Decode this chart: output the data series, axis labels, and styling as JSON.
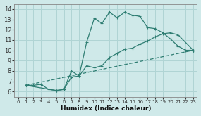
{
  "xlabel": "Humidex (Indice chaleur)",
  "xlim": [
    -0.5,
    23.5
  ],
  "ylim": [
    5.5,
    14.5
  ],
  "xticks": [
    0,
    1,
    2,
    3,
    4,
    5,
    6,
    7,
    8,
    9,
    10,
    11,
    12,
    13,
    14,
    15,
    16,
    17,
    18,
    19,
    20,
    21,
    22,
    23
  ],
  "yticks": [
    6,
    7,
    8,
    9,
    10,
    11,
    12,
    13,
    14
  ],
  "bg_color": "#cfe9e9",
  "line_color": "#2e7d72",
  "grid_color": "#b0d4d4",
  "line1_x": [
    1,
    2,
    3,
    4,
    5,
    6,
    7,
    8,
    9,
    10,
    11,
    12,
    13,
    14,
    15,
    16,
    17,
    18,
    19,
    20,
    21,
    22,
    23
  ],
  "line1_y": [
    6.6,
    6.6,
    6.7,
    6.2,
    6.1,
    6.2,
    7.4,
    7.5,
    10.8,
    13.1,
    12.6,
    13.7,
    13.15,
    13.7,
    13.4,
    13.3,
    12.2,
    12.1,
    11.7,
    11.1,
    10.4,
    10.0,
    10.0
  ],
  "line2_x": [
    1,
    23
  ],
  "line2_y": [
    6.6,
    10.0
  ],
  "line3_x": [
    1,
    5,
    6,
    7,
    8,
    9,
    10,
    11,
    12,
    13,
    14,
    15,
    16,
    17,
    18,
    19,
    20,
    21,
    23
  ],
  "line3_y": [
    6.6,
    6.1,
    6.2,
    8.0,
    7.5,
    8.5,
    8.3,
    8.5,
    9.3,
    9.7,
    10.1,
    10.2,
    10.6,
    10.9,
    11.3,
    11.6,
    11.7,
    11.5,
    10.0
  ]
}
